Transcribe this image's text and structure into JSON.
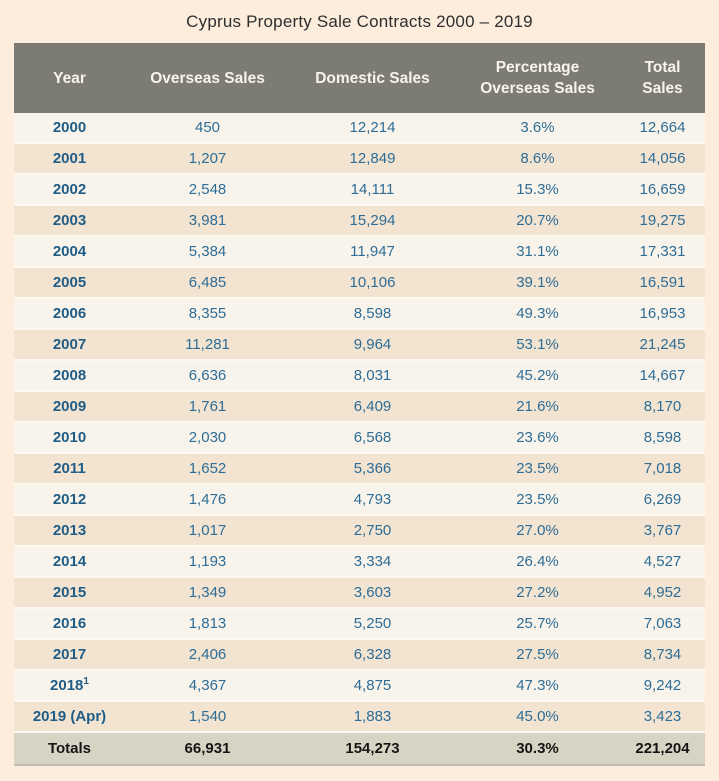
{
  "title": "Cyprus Property Sale Contracts 2000 – 2019",
  "colors": {
    "page_background": "#fceddc",
    "header_background": "#7c7c74",
    "header_text": "#f7f4ee",
    "row_odd_background": "#f9f4eb",
    "row_even_background": "#f2e4d1",
    "totals_background": "#d8d4c4",
    "year_text": "#1f5c86",
    "value_text": "#2d6d97",
    "totals_text": "#151515"
  },
  "table": {
    "header": {
      "cells": [
        {
          "line1": "Year",
          "line2": ""
        },
        {
          "line1": "Overseas Sales",
          "line2": ""
        },
        {
          "line1": "Domestic Sales",
          "line2": ""
        },
        {
          "line1": "Percentage",
          "line2": "Overseas Sales"
        },
        {
          "line1": "Total",
          "line2": "Sales"
        }
      ]
    },
    "rows": [
      {
        "year": "2000",
        "year_sup": "",
        "overseas": "450",
        "domestic": "12,214",
        "percentage": "3.6%",
        "total": "12,664"
      },
      {
        "year": "2001",
        "year_sup": "",
        "overseas": "1,207",
        "domestic": "12,849",
        "percentage": "8.6%",
        "total": "14,056"
      },
      {
        "year": "2002",
        "year_sup": "",
        "overseas": "2,548",
        "domestic": "14,111",
        "percentage": "15.3%",
        "total": "16,659"
      },
      {
        "year": "2003",
        "year_sup": "",
        "overseas": "3,981",
        "domestic": "15,294",
        "percentage": "20.7%",
        "total": "19,275"
      },
      {
        "year": "2004",
        "year_sup": "",
        "overseas": "5,384",
        "domestic": "11,947",
        "percentage": "31.1%",
        "total": "17,331"
      },
      {
        "year": "2005",
        "year_sup": "",
        "overseas": "6,485",
        "domestic": "10,106",
        "percentage": "39.1%",
        "total": "16,591"
      },
      {
        "year": "2006",
        "year_sup": "",
        "overseas": "8,355",
        "domestic": "8,598",
        "percentage": "49.3%",
        "total": "16,953"
      },
      {
        "year": "2007",
        "year_sup": "",
        "overseas": "11,281",
        "domestic": "9,964",
        "percentage": "53.1%",
        "total": "21,245"
      },
      {
        "year": "2008",
        "year_sup": "",
        "overseas": "6,636",
        "domestic": "8,031",
        "percentage": "45.2%",
        "total": "14,667"
      },
      {
        "year": "2009",
        "year_sup": "",
        "overseas": "1,761",
        "domestic": "6,409",
        "percentage": "21.6%",
        "total": "8,170"
      },
      {
        "year": "2010",
        "year_sup": "",
        "overseas": "2,030",
        "domestic": "6,568",
        "percentage": "23.6%",
        "total": "8,598"
      },
      {
        "year": "2011",
        "year_sup": "",
        "overseas": "1,652",
        "domestic": "5,366",
        "percentage": "23.5%",
        "total": "7,018"
      },
      {
        "year": "2012",
        "year_sup": "",
        "overseas": "1,476",
        "domestic": "4,793",
        "percentage": "23.5%",
        "total": "6,269"
      },
      {
        "year": "2013",
        "year_sup": "",
        "overseas": "1,017",
        "domestic": "2,750",
        "percentage": "27.0%",
        "total": "3,767"
      },
      {
        "year": "2014",
        "year_sup": "",
        "overseas": "1,193",
        "domestic": "3,334",
        "percentage": "26.4%",
        "total": "4,527"
      },
      {
        "year": "2015",
        "year_sup": "",
        "overseas": "1,349",
        "domestic": "3,603",
        "percentage": "27.2%",
        "total": "4,952"
      },
      {
        "year": "2016",
        "year_sup": "",
        "overseas": "1,813",
        "domestic": "5,250",
        "percentage": "25.7%",
        "total": "7,063"
      },
      {
        "year": "2017",
        "year_sup": "",
        "overseas": "2,406",
        "domestic": "6,328",
        "percentage": "27.5%",
        "total": "8,734"
      },
      {
        "year": "2018",
        "year_sup": "1",
        "overseas": "4,367",
        "domestic": "4,875",
        "percentage": "47.3%",
        "total": "9,242"
      },
      {
        "year": "2019 (Apr)",
        "year_sup": "",
        "overseas": "1,540",
        "domestic": "1,883",
        "percentage": "45.0%",
        "total": "3,423"
      }
    ],
    "totals": {
      "label": "Totals",
      "overseas": "66,931",
      "domestic": "154,273",
      "percentage": "30.3%",
      "total": "221,204"
    }
  },
  "chart_data": {
    "type": "table",
    "title": "Cyprus Property Sale Contracts 2000 – 2019",
    "columns": [
      "Year",
      "Overseas Sales",
      "Domestic Sales",
      "Percentage Overseas Sales",
      "Total Sales"
    ],
    "years": [
      "2000",
      "2001",
      "2002",
      "2003",
      "2004",
      "2005",
      "2006",
      "2007",
      "2008",
      "2009",
      "2010",
      "2011",
      "2012",
      "2013",
      "2014",
      "2015",
      "2016",
      "2017",
      "2018",
      "2019 (Apr)"
    ],
    "overseas_sales": [
      450,
      1207,
      2548,
      3981,
      5384,
      6485,
      8355,
      11281,
      6636,
      1761,
      2030,
      1652,
      1476,
      1017,
      1193,
      1349,
      1813,
      2406,
      4367,
      1540
    ],
    "domestic_sales": [
      12214,
      12849,
      14111,
      15294,
      11947,
      10106,
      8598,
      9964,
      8031,
      6409,
      6568,
      5366,
      4793,
      2750,
      3334,
      3603,
      5250,
      6328,
      4875,
      1883
    ],
    "percentage_overseas_sales": [
      3.6,
      8.6,
      15.3,
      20.7,
      31.1,
      39.1,
      49.3,
      53.1,
      45.2,
      21.6,
      23.6,
      23.5,
      23.5,
      27.0,
      26.4,
      27.2,
      25.7,
      27.5,
      47.3,
      45.0
    ],
    "total_sales": [
      12664,
      14056,
      16659,
      19275,
      17331,
      16591,
      16953,
      21245,
      14667,
      8170,
      8598,
      7018,
      6269,
      3767,
      4527,
      4952,
      7063,
      8734,
      9242,
      3423
    ],
    "totals_row": {
      "overseas_sales": 66931,
      "domestic_sales": 154273,
      "percentage_overseas_sales": 30.3,
      "total_sales": 221204
    },
    "footnote_marker_on": "2018"
  }
}
